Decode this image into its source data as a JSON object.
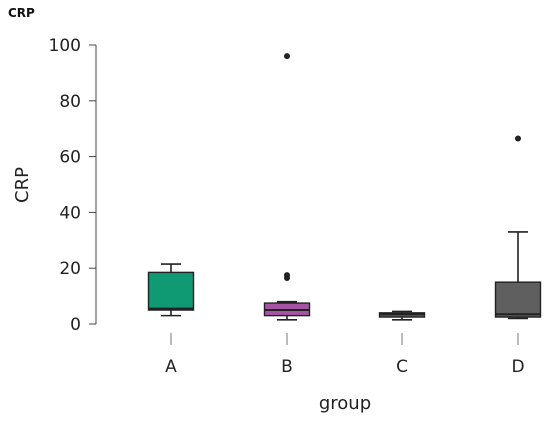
{
  "chart_data": {
    "type": "boxplot",
    "title": "CRP",
    "xlabel": "group",
    "ylabel": "CRP",
    "ylim": [
      0,
      100
    ],
    "yticks": [
      0,
      20,
      40,
      60,
      80,
      100
    ],
    "grid": false,
    "legend": "none",
    "categories": [
      "A",
      "B",
      "C",
      "D"
    ],
    "boxes": [
      {
        "category": "A",
        "whisker_low": 3,
        "q1": 5,
        "median": 5.5,
        "q3": 18.5,
        "whisker_high": 21.5,
        "outliers": [],
        "color": "#0f9a74"
      },
      {
        "category": "B",
        "whisker_low": 1.5,
        "q1": 3,
        "median": 5,
        "q3": 7.5,
        "whisker_high": 8,
        "outliers": [
          16.5,
          17.5,
          96
        ],
        "color": "#a653a4"
      },
      {
        "category": "C",
        "whisker_low": 1.5,
        "q1": 2.5,
        "median": 3.5,
        "q3": 4,
        "whisker_high": 4.5,
        "outliers": [],
        "color": "#5f5f5f"
      },
      {
        "category": "D",
        "whisker_low": 2,
        "q1": 2.5,
        "median": 3.5,
        "q3": 15,
        "whisker_high": 33,
        "outliers": [
          66.5
        ],
        "color": "#5f5f5f"
      }
    ]
  }
}
